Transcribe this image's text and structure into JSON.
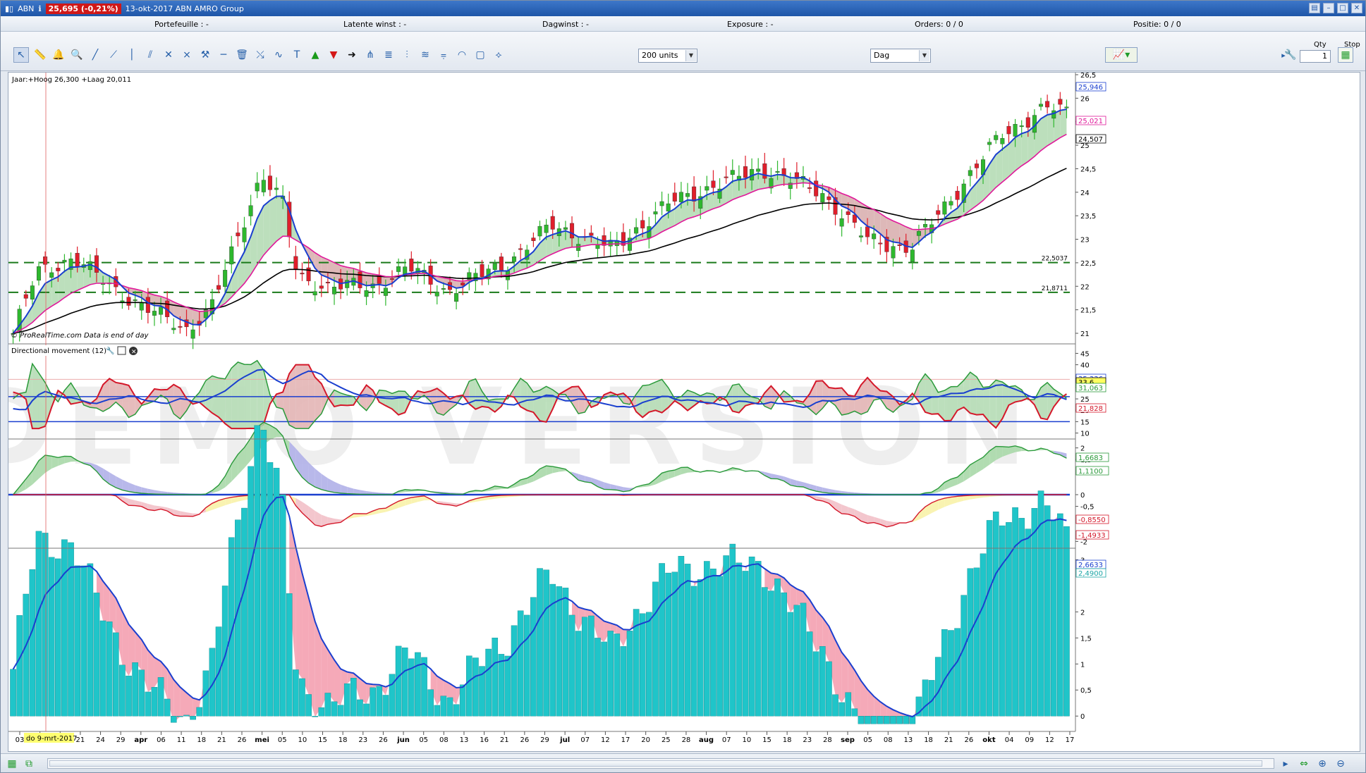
{
  "titlebar": {
    "symbol": "ABN",
    "price_change": "25,695 (-0,21%)",
    "date_name": "13-okt-2017 ABN AMRO Group"
  },
  "infobar": {
    "portefeuille": "Portefeuille : -",
    "latente": "Latente winst : -",
    "dagwinst": "Dagwinst : -",
    "exposure": "Exposure : -",
    "orders": "Orders: 0 / 0",
    "positie": "Positie: 0 / 0"
  },
  "toolbar": {
    "units": "200 units",
    "period": "Dag",
    "qty_label": "Qty",
    "qty_value": "1",
    "stop_label": "Stop"
  },
  "panels": {
    "price_header": "Jaar:+Hoog 26,300 +Laag 20,011",
    "copyright": "© ProRealTime.com  Data is end of day",
    "indicator": "Directional movement (12)",
    "watermark": "DEMO VERSION",
    "cursor_date": "do 9-mrt-2017"
  },
  "price_axis": {
    "ticks": [
      "26,5",
      "26",
      "25,5",
      "25",
      "24,5",
      "24",
      "23,5",
      "23",
      "22,5",
      "22",
      "21,5",
      "21"
    ],
    "labels": [
      {
        "text": "25,946",
        "color": "#1a3fcf"
      },
      {
        "text": "25,021",
        "color": "#e0189a"
      },
      {
        "text": "24,507",
        "color": "#000000"
      }
    ],
    "hlines": [
      {
        "value": 22.5037,
        "label": "22,5037"
      },
      {
        "value": 21.8711,
        "label": "21,8711"
      }
    ]
  },
  "dm_axis": {
    "ticks": [
      "45",
      "40",
      "35",
      "30",
      "25",
      "20",
      "15",
      "10"
    ],
    "labels": [
      {
        "text": "35,336",
        "color": "#1a3fcf"
      },
      {
        "text": "33,6",
        "color": "#000000"
      },
      {
        "text": "31,063",
        "color": "#2a9a3a"
      },
      {
        "text": "21,828",
        "color": "#d4182a"
      }
    ]
  },
  "osc_axis": {
    "ticks": [
      "2",
      "1,5",
      "0",
      "-0,5",
      "-2"
    ],
    "labels": [
      {
        "text": "1,6683",
        "color": "#2a9a3a"
      },
      {
        "text": "1,1100",
        "color": "#2a9a3a"
      },
      {
        "text": "-0,8550",
        "color": "#d4182a"
      },
      {
        "text": "-1,4933",
        "color": "#d4182a"
      }
    ]
  },
  "hist_axis": {
    "ticks": [
      "3",
      "2",
      "1,5",
      "1",
      "0,5",
      "0"
    ],
    "labels": [
      {
        "text": "2,6633",
        "color": "#1a3fcf"
      },
      {
        "text": "2,4900",
        "color": "#1aa5a5"
      }
    ]
  },
  "x_axis": {
    "labels": [
      "03",
      "13",
      "16",
      "21",
      "24",
      "29",
      "apr",
      "06",
      "11",
      "18",
      "21",
      "26",
      "mei",
      "05",
      "10",
      "15",
      "18",
      "23",
      "26",
      "jun",
      "05",
      "08",
      "13",
      "16",
      "21",
      "26",
      "29",
      "jul",
      "07",
      "12",
      "17",
      "20",
      "25",
      "28",
      "aug",
      "07",
      "10",
      "15",
      "18",
      "23",
      "28",
      "sep",
      "05",
      "08",
      "13",
      "18",
      "21",
      "26",
      "okt",
      "04",
      "09",
      "12",
      "17"
    ]
  },
  "colors": {
    "up": "#2eb82e",
    "down": "#e01e2b",
    "ma_fast": "#1a3fcf",
    "ma_mid": "#e0189a",
    "ma_slow": "#000000",
    "hist": "#1fc5c9"
  }
}
